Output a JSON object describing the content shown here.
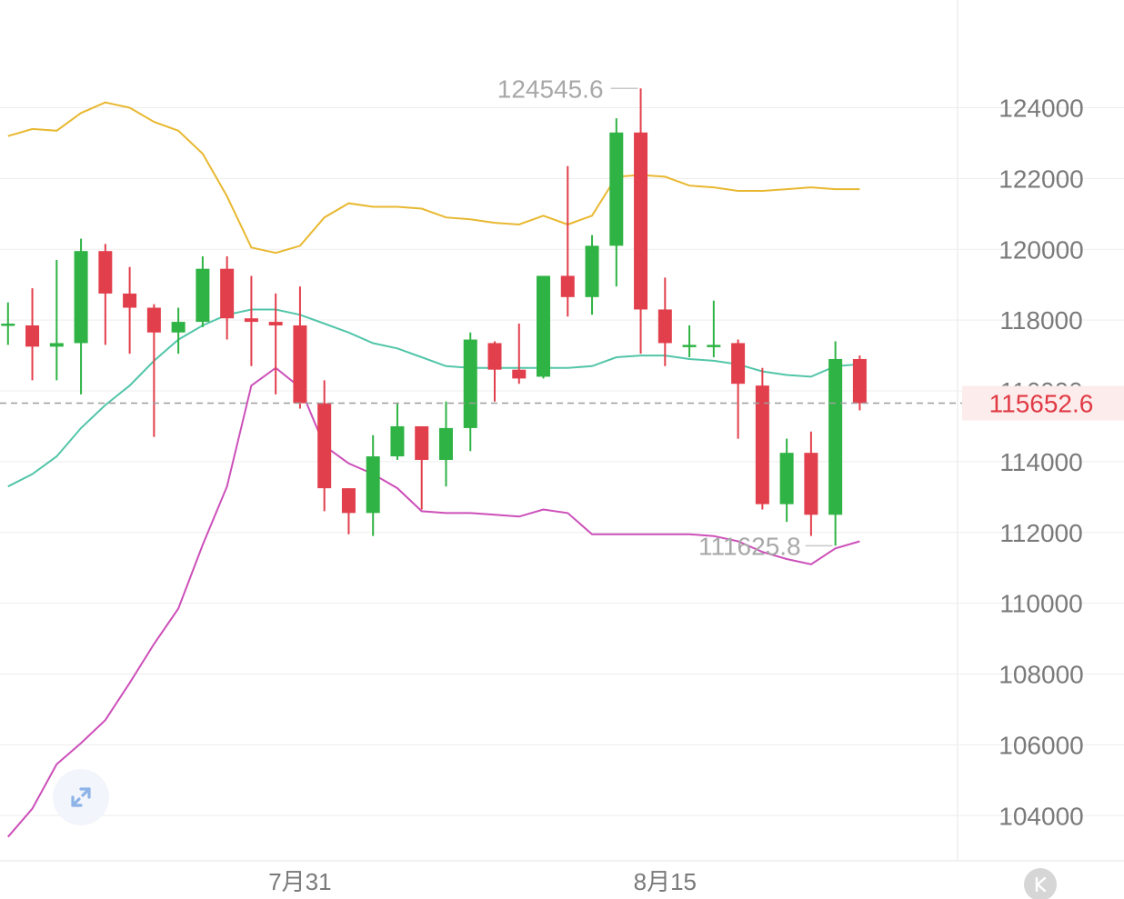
{
  "chart_data": {
    "type": "candlestick",
    "y_axis": {
      "ticks": [
        104000,
        106000,
        108000,
        110000,
        112000,
        114000,
        116000,
        118000,
        120000,
        122000,
        124000
      ],
      "tick_labels": [
        "104000",
        "106000",
        "108000",
        "110000",
        "112000",
        "114000",
        "116000",
        "118000",
        "120000",
        "122000",
        "124000"
      ],
      "range": [
        102800,
        126200
      ],
      "position": "right",
      "grid": true
    },
    "x_axis": {
      "labels": [
        {
          "text": "7月31",
          "index": 12
        },
        {
          "text": "8月15",
          "index": 27
        }
      ]
    },
    "candles": [
      {
        "open": 117900,
        "close": 117900,
        "high": 118500,
        "low": 117300
      },
      {
        "open": 117850,
        "close": 117250,
        "high": 118900,
        "low": 116300
      },
      {
        "open": 117250,
        "close": 117350,
        "high": 119700,
        "low": 116300
      },
      {
        "open": 117350,
        "close": 119950,
        "high": 120300,
        "low": 115900
      },
      {
        "open": 119950,
        "close": 118750,
        "high": 120150,
        "low": 117300
      },
      {
        "open": 118750,
        "close": 118350,
        "high": 119500,
        "low": 117050
      },
      {
        "open": 118350,
        "close": 117650,
        "high": 118450,
        "low": 114700
      },
      {
        "open": 117650,
        "close": 117950,
        "high": 118350,
        "low": 117050
      },
      {
        "open": 117950,
        "close": 119450,
        "high": 119800,
        "low": 117800
      },
      {
        "open": 119450,
        "close": 118050,
        "high": 119800,
        "low": 117450
      },
      {
        "open": 118050,
        "close": 117950,
        "high": 119250,
        "low": 116700
      },
      {
        "open": 117950,
        "close": 117850,
        "high": 118750,
        "low": 115900
      },
      {
        "open": 117850,
        "close": 115650,
        "high": 118950,
        "low": 115500
      },
      {
        "open": 115650,
        "close": 113250,
        "high": 116300,
        "low": 112600
      },
      {
        "open": 113250,
        "close": 112550,
        "high": 113250,
        "low": 111950
      },
      {
        "open": 112550,
        "close": 114150,
        "high": 114750,
        "low": 111900
      },
      {
        "open": 114150,
        "close": 115000,
        "high": 115650,
        "low": 114050
      },
      {
        "open": 115000,
        "close": 114050,
        "high": 115000,
        "low": 112650
      },
      {
        "open": 114050,
        "close": 114950,
        "high": 115700,
        "low": 113300
      },
      {
        "open": 114950,
        "close": 117450,
        "high": 117650,
        "low": 114300
      },
      {
        "open": 117350,
        "close": 116600,
        "high": 117400,
        "low": 115700
      },
      {
        "open": 116600,
        "close": 116350,
        "high": 117900,
        "low": 116200
      },
      {
        "open": 116400,
        "close": 119250,
        "high": 119250,
        "low": 116350
      },
      {
        "open": 119250,
        "close": 118650,
        "high": 122350,
        "low": 118100
      },
      {
        "open": 118650,
        "close": 120100,
        "high": 120400,
        "low": 118150
      },
      {
        "open": 120100,
        "close": 123300,
        "high": 123700,
        "low": 118950
      },
      {
        "open": 123300,
        "close": 118300,
        "high": 124545.6,
        "low": 117050
      },
      {
        "open": 118300,
        "close": 117350,
        "high": 119200,
        "low": 116700
      },
      {
        "open": 117300,
        "close": 117300,
        "high": 117850,
        "low": 116950
      },
      {
        "open": 117300,
        "close": 117300,
        "high": 118550,
        "low": 116950
      },
      {
        "open": 117350,
        "close": 116200,
        "high": 117450,
        "low": 114650
      },
      {
        "open": 116150,
        "close": 112800,
        "high": 116650,
        "low": 112650
      },
      {
        "open": 112800,
        "close": 114250,
        "high": 114650,
        "low": 112300
      },
      {
        "open": 114250,
        "close": 112500,
        "high": 114850,
        "low": 111900
      },
      {
        "open": 112500,
        "close": 116900,
        "high": 117400,
        "low": 111625.8
      },
      {
        "open": 116900,
        "close": 115652.6,
        "high": 117000,
        "low": 115450
      }
    ],
    "bands": {
      "upper": [
        123200,
        123400,
        123350,
        123850,
        124150,
        124000,
        123600,
        123350,
        122700,
        121500,
        120050,
        119900,
        120100,
        120900,
        121300,
        121200,
        121200,
        121150,
        120900,
        120850,
        120750,
        120700,
        120950,
        120700,
        120950,
        122050,
        122100,
        122050,
        121800,
        121750,
        121650,
        121650,
        121700,
        121750,
        121700,
        121700
      ],
      "middle": [
        113300,
        113650,
        114150,
        114950,
        115600,
        116150,
        116850,
        117450,
        117850,
        118150,
        118300,
        118300,
        118150,
        117900,
        117650,
        117350,
        117200,
        116950,
        116700,
        116650,
        116650,
        116650,
        116650,
        116650,
        116700,
        116950,
        117000,
        117000,
        116900,
        116850,
        116750,
        116550,
        116450,
        116400,
        116700,
        116750
      ],
      "lower": [
        103400,
        104200,
        105450,
        106050,
        106700,
        107750,
        108850,
        109850,
        111650,
        113300,
        116150,
        116650,
        116100,
        114450,
        113950,
        113650,
        113250,
        112600,
        112550,
        112550,
        112500,
        112450,
        112650,
        112550,
        111950,
        111950,
        111950,
        111950,
        111950,
        111900,
        111750,
        111450,
        111250,
        111100,
        111550,
        111750
      ],
      "upper_color": "#e8b830",
      "middle_color": "#52c5a8",
      "lower_color": "#cc4fb9"
    },
    "annotations": {
      "high_label": "124545.6",
      "low_label": "111625.8",
      "current_price": 115652.6,
      "current_price_label": "115652.6"
    },
    "colors": {
      "up": "#2fb344",
      "down": "#e23f4c",
      "grid": "#ededed",
      "axis_text": "#7a7a7a",
      "annotation_text": "#a8a8a8",
      "current_price_bg": "#fdecec",
      "current_price_text": "#e03a45"
    }
  },
  "controls": {
    "expand_icon": "expand-arrows-icon",
    "kline_icon": "k-letter-icon",
    "kline_label": "K"
  }
}
